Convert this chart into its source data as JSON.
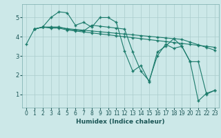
{
  "xlabel": "Humidex (Indice chaleur)",
  "background_color": "#cce8e8",
  "grid_color": "#aacccc",
  "line_color": "#1a7a6a",
  "xlim": [
    -0.5,
    23.5
  ],
  "ylim": [
    0.3,
    5.7
  ],
  "yticks": [
    1,
    2,
    3,
    4,
    5
  ],
  "xticks": [
    0,
    1,
    2,
    3,
    4,
    5,
    6,
    7,
    8,
    9,
    10,
    11,
    12,
    13,
    14,
    15,
    16,
    17,
    18,
    19,
    20,
    21,
    22,
    23
  ],
  "series": [
    {
      "x": [
        0,
        1,
        2,
        3,
        4,
        5,
        6,
        7,
        8,
        9,
        10,
        11,
        12,
        13,
        14,
        15,
        16,
        17,
        18,
        19,
        20,
        21,
        22,
        23
      ],
      "y": [
        3.6,
        4.4,
        4.5,
        5.0,
        5.3,
        5.25,
        4.6,
        4.75,
        4.5,
        5.0,
        5.0,
        4.75,
        3.25,
        2.2,
        2.5,
        1.65,
        3.2,
        3.5,
        3.9,
        3.5,
        2.7,
        0.65,
        1.05,
        1.2
      ]
    },
    {
      "x": [
        1,
        2,
        3,
        4,
        5,
        6,
        7,
        8,
        9,
        10,
        11,
        12,
        13,
        14,
        15,
        16,
        17,
        18,
        19,
        20,
        21,
        22,
        23
      ],
      "y": [
        4.4,
        4.5,
        4.45,
        4.45,
        4.35,
        4.3,
        4.25,
        4.2,
        4.15,
        4.1,
        4.05,
        4.0,
        3.95,
        3.9,
        3.85,
        3.8,
        3.75,
        3.7,
        3.65,
        3.6,
        3.55,
        3.5,
        3.45
      ]
    },
    {
      "x": [
        1,
        2,
        3,
        4,
        5,
        6,
        7,
        8,
        9,
        10,
        11,
        12,
        13,
        14,
        15,
        16,
        17,
        18,
        19,
        20,
        21,
        22,
        23
      ],
      "y": [
        4.4,
        4.5,
        4.5,
        4.5,
        4.42,
        4.38,
        4.34,
        4.3,
        4.26,
        4.22,
        4.18,
        4.14,
        4.1,
        4.06,
        4.02,
        3.98,
        3.94,
        3.9,
        3.86,
        3.72,
        3.58,
        3.44,
        3.3
      ]
    },
    {
      "x": [
        1,
        2,
        3,
        4,
        5,
        6,
        7,
        8,
        9,
        10,
        11,
        12,
        13,
        14,
        15,
        16,
        17,
        18,
        19,
        20,
        21,
        22,
        23
      ],
      "y": [
        4.4,
        4.5,
        4.5,
        4.5,
        4.4,
        4.35,
        4.3,
        4.6,
        4.55,
        4.5,
        4.45,
        4.4,
        3.2,
        2.2,
        1.7,
        3.0,
        3.6,
        3.4,
        3.5,
        2.7,
        2.7,
        1.0,
        1.2
      ]
    }
  ]
}
